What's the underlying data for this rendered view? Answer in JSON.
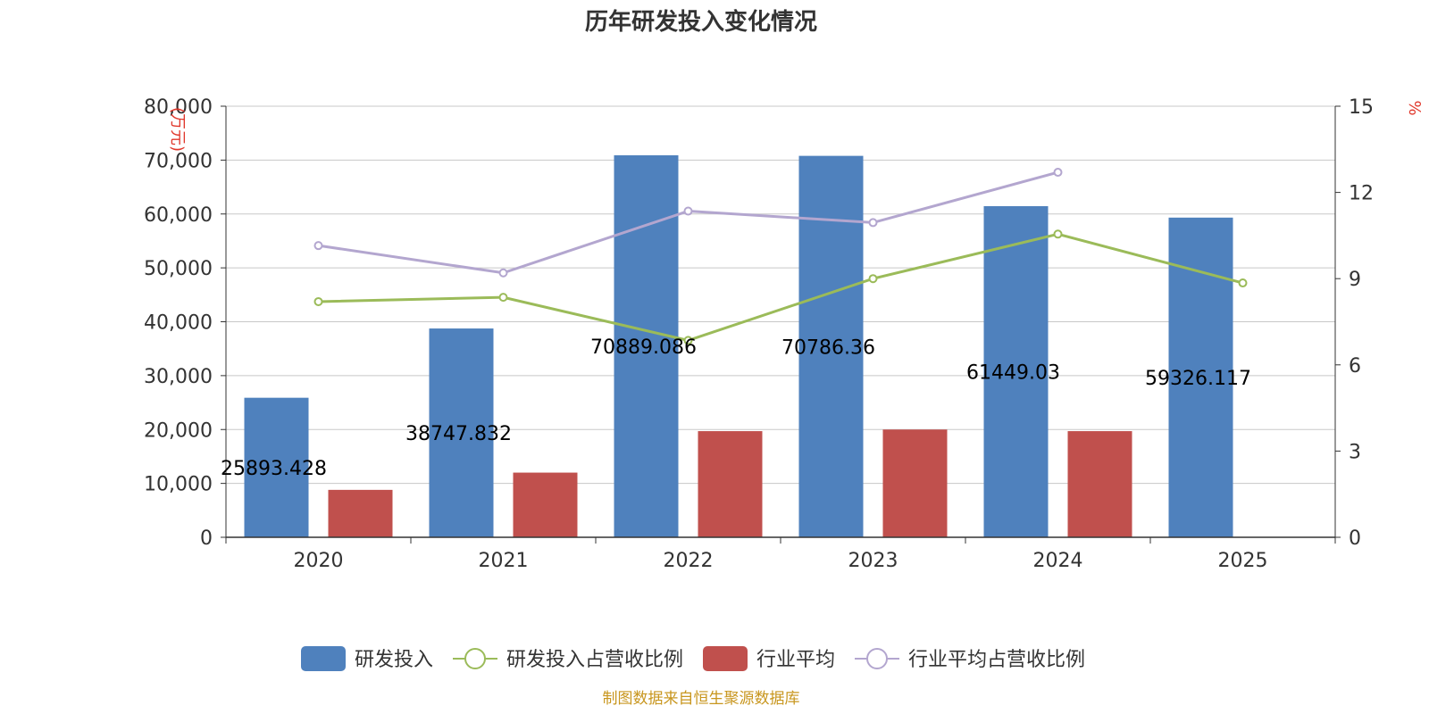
{
  "chart_data": {
    "type": "bar",
    "title": "历年研发投入变化情况",
    "categories": [
      "2020",
      "2021",
      "2022",
      "2023",
      "2024",
      "2025"
    ],
    "y_left": {
      "unit": "(万元)",
      "ylim": [
        0,
        80000
      ],
      "ticks": [
        0,
        10000,
        20000,
        30000,
        40000,
        50000,
        60000,
        70000,
        80000
      ],
      "tick_labels": [
        "0",
        "10,000",
        "20,000",
        "30,000",
        "40,000",
        "50,000",
        "60,000",
        "70,000",
        "80,000"
      ]
    },
    "y_right": {
      "unit": "%",
      "ylim": [
        0,
        15
      ],
      "ticks": [
        0,
        3,
        6,
        9,
        12,
        15
      ]
    },
    "series": [
      {
        "name": "研发投入",
        "type": "bar",
        "axis": "left",
        "color": "#4f81bd",
        "values": [
          25893.428,
          38747.832,
          70889.086,
          70786.36,
          61449.03,
          59326.117
        ],
        "labels": [
          "25893.428",
          "38747.832",
          "70889.086",
          "70786.36",
          "61449.03",
          "59326.117"
        ]
      },
      {
        "name": "研发投入占营收比例",
        "type": "line",
        "axis": "right",
        "color": "#9bbb59",
        "values": [
          8.2,
          8.35,
          6.85,
          9.0,
          10.55,
          8.85
        ]
      },
      {
        "name": "行业平均",
        "type": "bar",
        "axis": "left",
        "color": "#c0504d",
        "values": [
          8800,
          12000,
          19700,
          20000,
          19700,
          null
        ]
      },
      {
        "name": "行业平均占营收比例",
        "type": "line",
        "axis": "right",
        "color": "#b3a6cf",
        "values": [
          10.15,
          9.2,
          11.35,
          10.95,
          12.7,
          null
        ]
      }
    ],
    "legend_position": "bottom-center",
    "grid": true
  },
  "source_text": "制图数据来自恒生聚源数据库"
}
